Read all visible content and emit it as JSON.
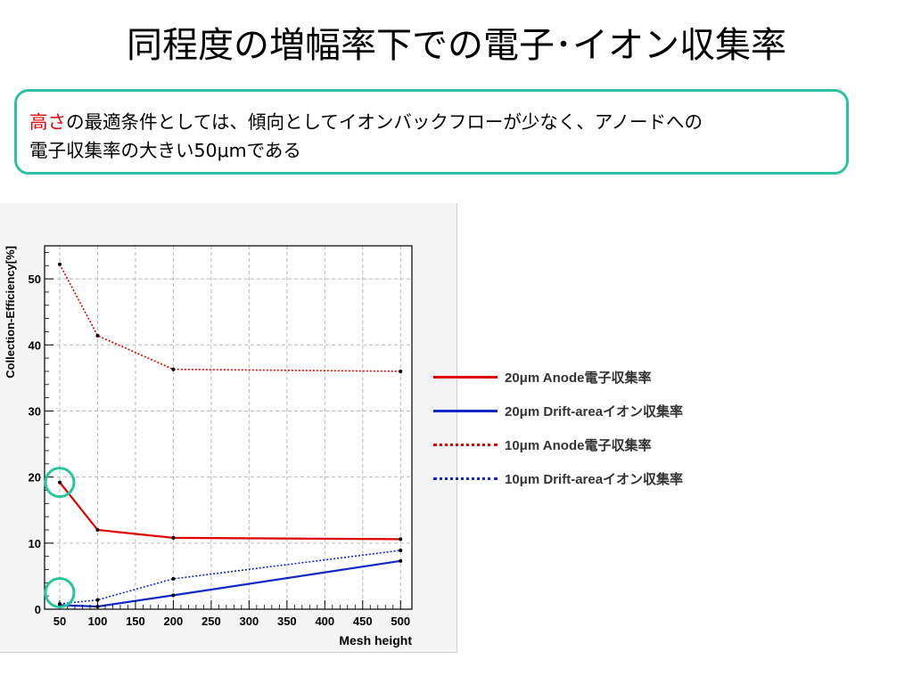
{
  "slide": {
    "title": "同程度の増幅率下での電子･イオン収集率",
    "note_highlight": "高さ",
    "note_line1_rest": "の最適条件としては、傾向としてイオンバックフローが少なく、アノードへの",
    "note_line2": "電子収集率の大きい50μmである"
  },
  "colors": {
    "accent_red": "#e8000b",
    "frame_teal": "#2ec2a2",
    "series_red": "#e00000",
    "series_blue": "#1028c8",
    "highlight_circle": "#27c79c"
  },
  "chart_data": {
    "type": "line",
    "xlabel": "Mesh height",
    "ylabel": "Collection-Efficiency[%]",
    "x_ticks": [
      50,
      100,
      150,
      200,
      250,
      300,
      350,
      400,
      450,
      500
    ],
    "y_ticks": [
      0,
      10,
      20,
      30,
      40,
      50
    ],
    "xlim": [
      30,
      515
    ],
    "ylim": [
      0,
      55
    ],
    "grid": true,
    "legend_position": "right, outside plot",
    "series": [
      {
        "name": "20μm Anode電子収集率",
        "style": "solid",
        "color": "#e00000",
        "x": [
          50,
          100,
          200,
          500
        ],
        "y": [
          19.2,
          12.0,
          10.8,
          10.6
        ]
      },
      {
        "name": "20μm Drift-areaイオン収集率",
        "style": "solid",
        "color": "#1028c8",
        "x": [
          50,
          100,
          200,
          500
        ],
        "y": [
          0.6,
          0.4,
          2.1,
          7.3
        ]
      },
      {
        "name": "10μm Anode電子収集率",
        "style": "dotted",
        "color": "#e00000",
        "x": [
          50,
          100,
          200,
          500
        ],
        "y": [
          52.2,
          41.4,
          36.3,
          36.0
        ]
      },
      {
        "name": "10μm Drift-areaイオン収集率",
        "style": "dotted",
        "color": "#1028c8",
        "x": [
          50,
          100,
          200,
          500
        ],
        "y": [
          0.8,
          1.4,
          4.6,
          8.9
        ]
      }
    ],
    "highlights": [
      {
        "x": 50,
        "y": 19.2
      },
      {
        "x": 50,
        "y": 2.5
      }
    ]
  }
}
